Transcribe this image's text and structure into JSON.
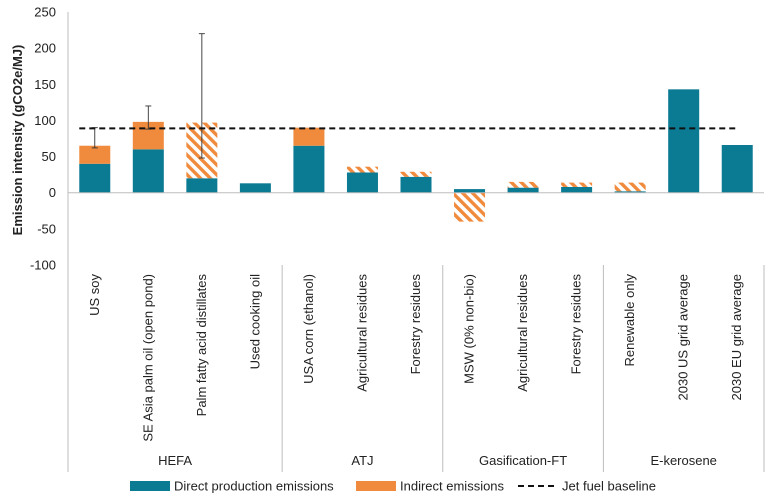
{
  "chart_data": {
    "type": "bar",
    "stacked": true,
    "ylabel": "Emission intensity (gCO2e/MJ)",
    "ylim": [
      -100,
      250
    ],
    "yticks": [
      -100,
      -50,
      0,
      50,
      100,
      150,
      200,
      250
    ],
    "grid": false,
    "legend_position": "bottom",
    "colors": {
      "direct": "#0b7a93",
      "indirect": "#f08a3c",
      "baseline": "#111111"
    },
    "groups": [
      {
        "name": "HEFA",
        "start": 0,
        "count": 4
      },
      {
        "name": "ATJ",
        "start": 4,
        "count": 3
      },
      {
        "name": "Gasification-FT",
        "start": 7,
        "count": 3
      },
      {
        "name": "E-kerosene",
        "start": 10,
        "count": 3
      }
    ],
    "categories": [
      "US soy",
      "SE Asia palm oil (open pond)",
      "Palm fatty acid distillates",
      "Used cooking oil",
      "USA corn (ethanol)",
      "Agricultural residues",
      "Forestry residues",
      "MSW (0% non-bio)",
      "Agricultural residues",
      "Forestry residues",
      "Renewable only",
      "2030 US grid average",
      "2030 EU grid average"
    ],
    "series": [
      {
        "name": "Direct production emissions",
        "style": "solid",
        "values": [
          40,
          60,
          20,
          13,
          65,
          28,
          22,
          5,
          7,
          8,
          2,
          143,
          66
        ]
      },
      {
        "name": "Indirect emissions",
        "values": [
          25,
          38,
          77,
          0,
          25,
          8,
          7,
          -40,
          8,
          6,
          12,
          0,
          0
        ],
        "styles": [
          "solid",
          "solid",
          "hatched",
          "solid",
          "solid",
          "hatched",
          "hatched",
          "hatched",
          "hatched",
          "hatched",
          "hatched",
          "solid",
          "solid"
        ]
      }
    ],
    "error_bars": [
      {
        "index": 0,
        "low": 62,
        "high": 90
      },
      {
        "index": 1,
        "low": 88,
        "high": 120
      },
      {
        "index": 2,
        "low": 48,
        "high": 220
      }
    ],
    "baseline": {
      "name": "Jet fuel baseline",
      "value": 89
    }
  }
}
